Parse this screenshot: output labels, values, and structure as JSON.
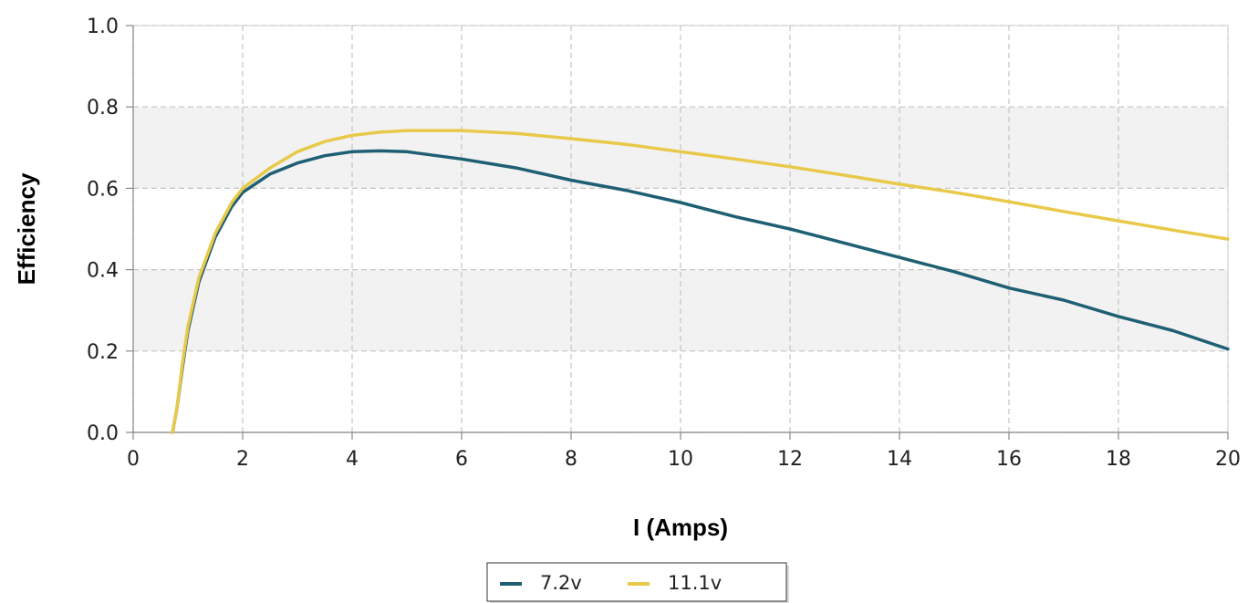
{
  "chart_data": {
    "type": "line",
    "title": "",
    "xlabel": "I (Amps)",
    "ylabel": "Efficiency",
    "xlim": [
      0,
      20
    ],
    "ylim": [
      0.0,
      1.0
    ],
    "x_ticks": [
      "0",
      "2",
      "4",
      "6",
      "8",
      "10",
      "12",
      "14",
      "16",
      "18",
      "20"
    ],
    "y_ticks": [
      "0.0",
      "0.2",
      "0.4",
      "0.6",
      "0.8",
      "1.0"
    ],
    "grid": true,
    "legend_position": "bottom-center",
    "series": [
      {
        "name": "7.2v",
        "color": "#1f5f73",
        "x": [
          0.72,
          0.8,
          0.9,
          1.0,
          1.2,
          1.5,
          1.8,
          2.0,
          2.5,
          3.0,
          3.5,
          4.0,
          4.5,
          5.0,
          6.0,
          7.0,
          8.0,
          9.0,
          10.0,
          11.0,
          12.0,
          13.0,
          14.0,
          15.0,
          16.0,
          17.0,
          18.0,
          19.0,
          20.0
        ],
        "y": [
          0.0,
          0.06,
          0.16,
          0.25,
          0.37,
          0.48,
          0.555,
          0.59,
          0.635,
          0.662,
          0.68,
          0.69,
          0.692,
          0.69,
          0.672,
          0.65,
          0.62,
          0.595,
          0.565,
          0.53,
          0.5,
          0.465,
          0.43,
          0.395,
          0.355,
          0.325,
          0.285,
          0.25,
          0.205
        ]
      },
      {
        "name": "11.1v",
        "color": "#e8c94a",
        "x": [
          0.72,
          0.8,
          0.9,
          1.0,
          1.2,
          1.5,
          1.8,
          2.0,
          2.5,
          3.0,
          3.5,
          4.0,
          4.5,
          5.0,
          6.0,
          7.0,
          8.0,
          9.0,
          10.0,
          11.0,
          12.0,
          13.0,
          14.0,
          15.0,
          16.0,
          17.0,
          18.0,
          19.0,
          20.0
        ],
        "y": [
          0.0,
          0.06,
          0.17,
          0.26,
          0.38,
          0.49,
          0.565,
          0.6,
          0.65,
          0.69,
          0.715,
          0.73,
          0.738,
          0.742,
          0.742,
          0.735,
          0.722,
          0.708,
          0.69,
          0.672,
          0.653,
          0.632,
          0.61,
          0.59,
          0.567,
          0.543,
          0.52,
          0.497,
          0.475
        ]
      }
    ]
  }
}
